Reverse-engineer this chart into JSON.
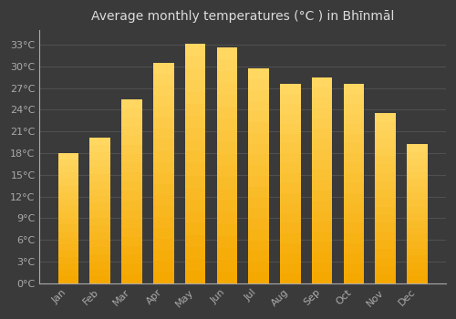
{
  "title": "Average monthly temperatures (°C ) in Bhīnmāl",
  "months": [
    "Jan",
    "Feb",
    "Mar",
    "Apr",
    "May",
    "Jun",
    "Jul",
    "Aug",
    "Sep",
    "Oct",
    "Nov",
    "Dec"
  ],
  "values": [
    18.0,
    20.2,
    25.5,
    30.5,
    33.1,
    32.6,
    29.7,
    27.6,
    28.5,
    27.6,
    23.5,
    19.2
  ],
  "bar_color_bottom": "#F5A800",
  "bar_color_top": "#FFD966",
  "background_color": "#3a3a3a",
  "grid_color": "#555555",
  "yticks": [
    0,
    3,
    6,
    9,
    12,
    15,
    18,
    21,
    24,
    27,
    30,
    33
  ],
  "ylim": [
    0,
    35
  ],
  "title_fontsize": 10,
  "tick_fontsize": 8,
  "title_color": "#dddddd",
  "tick_color": "#aaaaaa",
  "axis_color": "#aaaaaa"
}
